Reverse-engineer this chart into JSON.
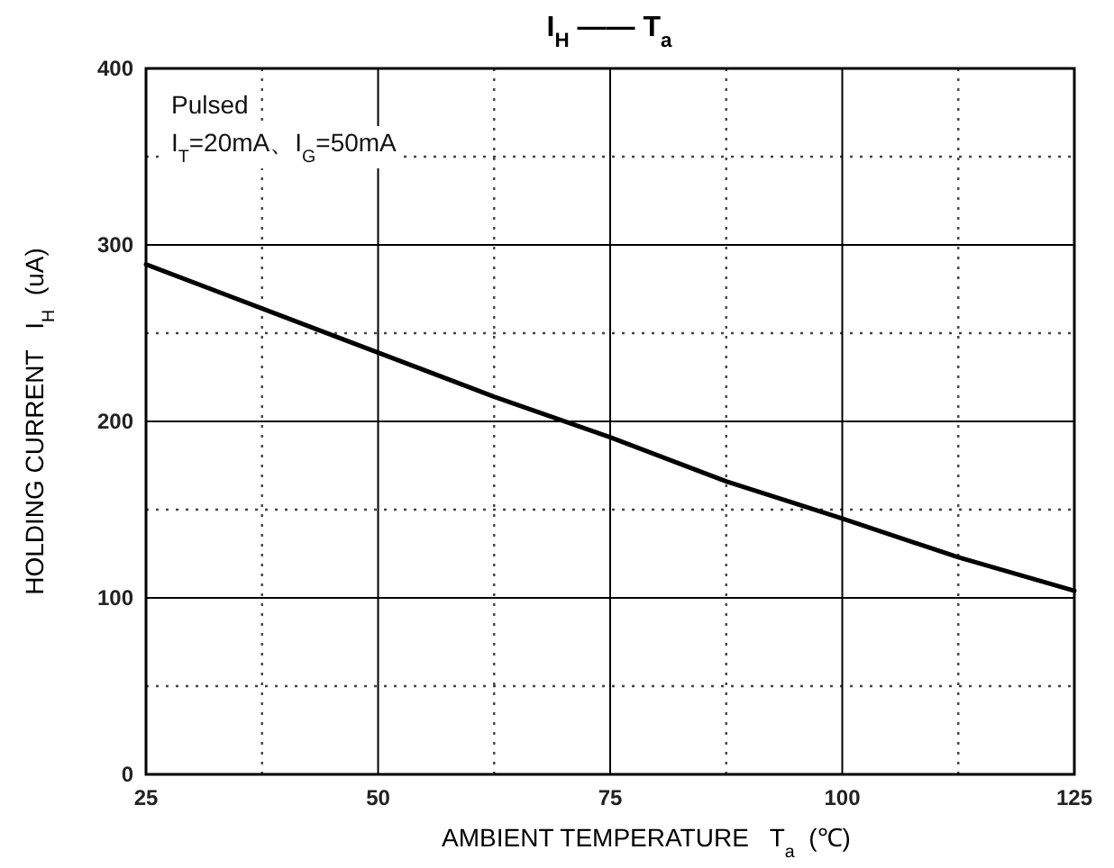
{
  "chart_data": {
    "type": "line",
    "title": "I$_{H}$ —— T$_{a}$",
    "xlabel": "AMBIENT TEMPERATURE   T$_{a}$  (℃)",
    "ylabel": "HOLDING CURRENT   I$_{H}$  (uA)",
    "annotations": [
      "Pulsed",
      "I$_{T}$=20mA、I$_{G}$=50mA"
    ],
    "x": [
      25,
      37.5,
      50,
      62.5,
      75,
      87.5,
      100,
      112.5,
      125
    ],
    "series": [
      {
        "color": "#000000",
        "values": [
          289,
          264,
          239,
          214,
          191,
          166,
          145,
          123,
          104
        ]
      }
    ],
    "xlim": [
      25,
      125
    ],
    "ylim": [
      0,
      400
    ],
    "xticks": [
      25,
      50,
      75,
      100,
      125
    ],
    "yticks": [
      0,
      100,
      200,
      300,
      400
    ],
    "grid": true
  }
}
